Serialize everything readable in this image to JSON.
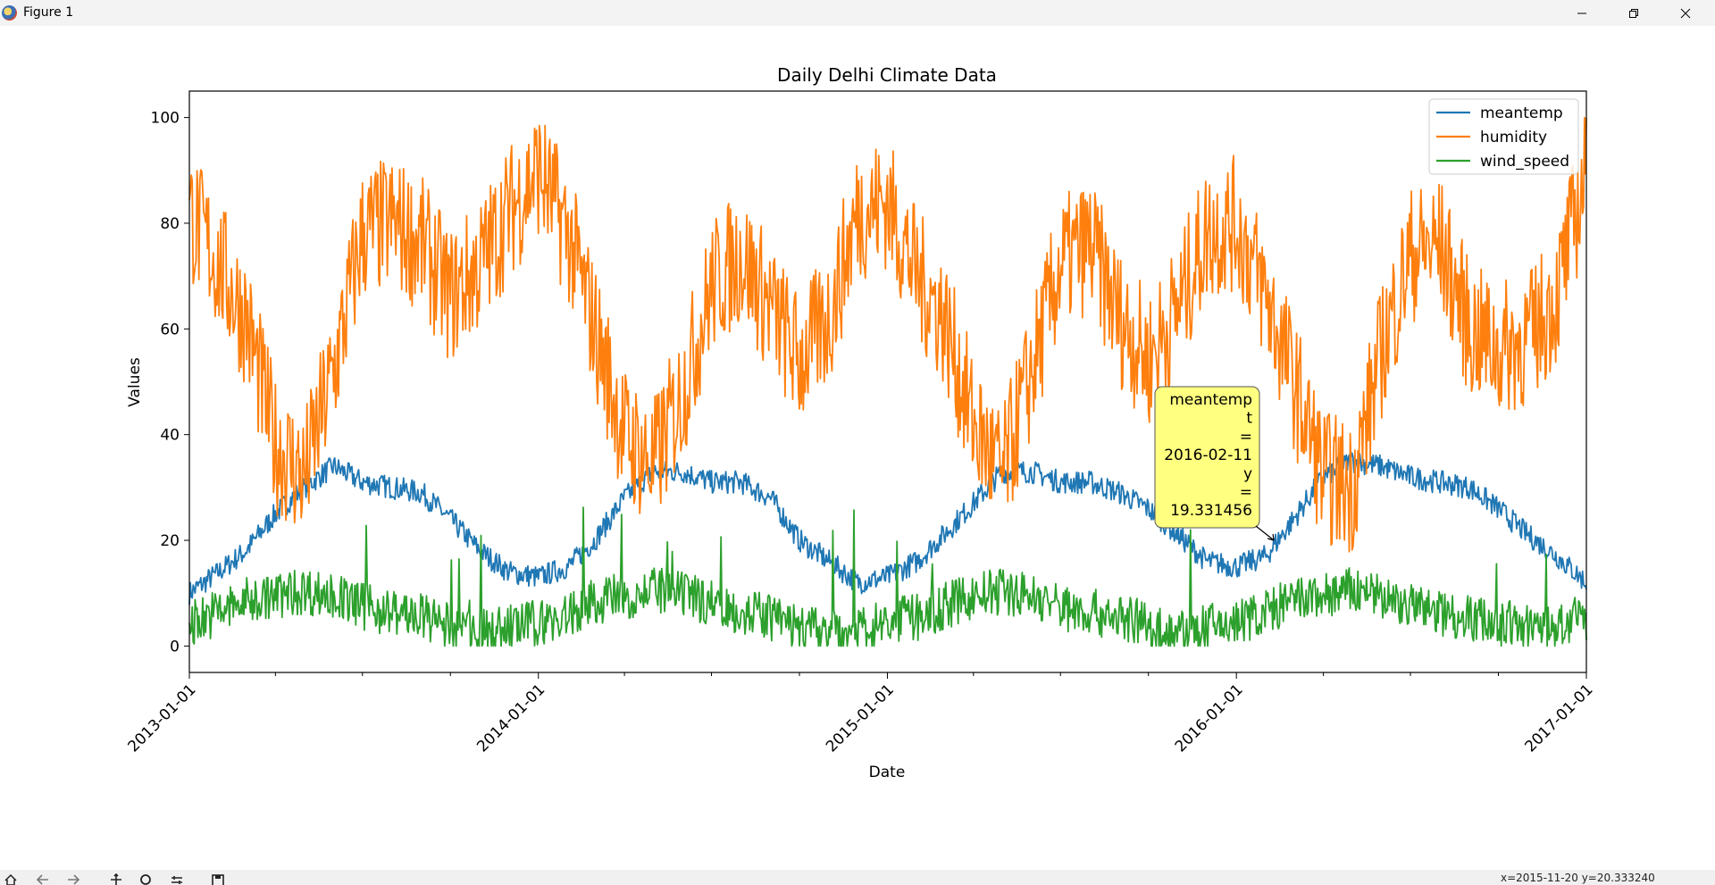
{
  "window": {
    "title": "Figure 1"
  },
  "toolbar": {
    "status_text": "x=2015-11-20 y=20.333240",
    "tools": [
      "home-icon",
      "back-arrow-icon",
      "forward-arrow-icon",
      "pan-icon",
      "zoom-icon",
      "configure-subplots-icon",
      "save-icon"
    ]
  },
  "chart_data": {
    "type": "line",
    "title": "Daily Delhi Climate Data",
    "xlabel": "Date",
    "ylabel": "Values",
    "xlim": [
      "2013-01-01",
      "2017-01-01"
    ],
    "ylim": [
      -5,
      105
    ],
    "xticks": [
      "2013-01-01",
      "2014-01-01",
      "2015-01-01",
      "2016-01-01",
      "2017-01-01"
    ],
    "yticks": [
      0,
      20,
      40,
      60,
      80,
      100
    ],
    "grid": false,
    "legend": "upper right",
    "series": [
      {
        "name": "meantemp",
        "color": "#1f77b4",
        "x": [
          "2013-01-01",
          "2013-02-01",
          "2013-03-01",
          "2013-04-01",
          "2013-05-01",
          "2013-06-01",
          "2013-07-01",
          "2013-08-01",
          "2013-09-01",
          "2013-10-01",
          "2013-11-01",
          "2013-12-01",
          "2014-01-01",
          "2014-02-01",
          "2014-03-01",
          "2014-04-01",
          "2014-05-01",
          "2014-06-01",
          "2014-07-01",
          "2014-08-01",
          "2014-09-01",
          "2014-10-01",
          "2014-11-01",
          "2014-12-01",
          "2015-01-01",
          "2015-02-01",
          "2015-03-01",
          "2015-04-01",
          "2015-05-01",
          "2015-06-01",
          "2015-07-01",
          "2015-08-01",
          "2015-09-01",
          "2015-10-01",
          "2015-11-01",
          "2015-12-01",
          "2016-01-01",
          "2016-02-01",
          "2016-03-01",
          "2016-04-01",
          "2016-05-01",
          "2016-06-01",
          "2016-07-01",
          "2016-08-01",
          "2016-09-01",
          "2016-10-01",
          "2016-11-01",
          "2016-12-01",
          "2017-01-01"
        ],
        "y": [
          10,
          14,
          18,
          25,
          30,
          34,
          31,
          30,
          29,
          24,
          18,
          14,
          13,
          15,
          20,
          28,
          33,
          33,
          31,
          31,
          28,
          20,
          16,
          12,
          13,
          16,
          21,
          27,
          33,
          33,
          31,
          31,
          29,
          26,
          21,
          16,
          15,
          17,
          24,
          32,
          35,
          34,
          32,
          31,
          30,
          26,
          21,
          17,
          12
        ]
      },
      {
        "name": "humidity",
        "color": "#ff7f0e",
        "x": [
          "2013-01-01",
          "2013-02-01",
          "2013-03-01",
          "2013-04-01",
          "2013-05-01",
          "2013-06-01",
          "2013-07-01",
          "2013-08-01",
          "2013-09-01",
          "2013-10-01",
          "2013-11-01",
          "2013-12-01",
          "2014-01-01",
          "2014-02-01",
          "2014-03-01",
          "2014-04-01",
          "2014-05-01",
          "2014-06-01",
          "2014-07-01",
          "2014-08-01",
          "2014-09-01",
          "2014-10-01",
          "2014-11-01",
          "2014-12-01",
          "2015-01-01",
          "2015-02-01",
          "2015-03-01",
          "2015-04-01",
          "2015-05-01",
          "2015-06-01",
          "2015-07-01",
          "2015-08-01",
          "2015-09-01",
          "2015-10-01",
          "2015-11-01",
          "2015-12-01",
          "2016-01-01",
          "2016-02-01",
          "2016-03-01",
          "2016-04-01",
          "2016-05-01",
          "2016-06-01",
          "2016-07-01",
          "2016-08-01",
          "2016-09-01",
          "2016-10-01",
          "2016-11-01",
          "2016-12-01",
          "2017-01-01"
        ],
        "y": [
          82,
          72,
          62,
          38,
          32,
          52,
          78,
          80,
          76,
          66,
          72,
          82,
          90,
          78,
          60,
          40,
          34,
          48,
          68,
          74,
          64,
          54,
          62,
          82,
          84,
          70,
          62,
          42,
          32,
          52,
          72,
          76,
          62,
          54,
          64,
          78,
          80,
          66,
          50,
          32,
          30,
          56,
          74,
          76,
          60,
          56,
          58,
          66,
          90
        ]
      },
      {
        "name": "wind_speed",
        "color": "#2ca02c",
        "x": [
          "2013-01-01",
          "2013-02-01",
          "2013-03-01",
          "2013-04-01",
          "2013-05-01",
          "2013-06-01",
          "2013-07-01",
          "2013-08-01",
          "2013-09-01",
          "2013-10-01",
          "2013-11-01",
          "2013-12-01",
          "2014-01-01",
          "2014-02-01",
          "2014-03-01",
          "2014-04-01",
          "2014-05-01",
          "2014-06-01",
          "2014-07-01",
          "2014-08-01",
          "2014-09-01",
          "2014-10-01",
          "2014-11-01",
          "2014-12-01",
          "2015-01-01",
          "2015-02-01",
          "2015-03-01",
          "2015-04-01",
          "2015-05-01",
          "2015-06-01",
          "2015-07-01",
          "2015-08-01",
          "2015-09-01",
          "2015-10-01",
          "2015-11-01",
          "2015-12-01",
          "2016-01-01",
          "2016-02-01",
          "2016-03-01",
          "2016-04-01",
          "2016-05-01",
          "2016-06-01",
          "2016-07-01",
          "2016-08-01",
          "2016-09-01",
          "2016-10-01",
          "2016-11-01",
          "2016-12-01",
          "2017-01-01"
        ],
        "y": [
          4,
          6,
          8,
          9,
          10,
          9,
          7,
          6,
          5,
          3,
          2,
          3,
          4,
          5,
          8,
          9,
          10,
          9,
          8,
          6,
          5,
          3,
          2,
          3,
          4,
          5,
          7,
          9,
          10,
          9,
          7,
          6,
          5,
          3,
          2,
          3,
          4,
          6,
          8,
          9,
          10,
          9,
          7,
          6,
          5,
          4,
          3,
          3,
          5
        ]
      }
    ],
    "annotation": {
      "lines": [
        "meantemp",
        "t",
        "=",
        "2016-02-11",
        "y",
        "=",
        "19.331456"
      ],
      "x": "2016-02-11",
      "y": 19.331456,
      "box_color": "#ffff80"
    }
  }
}
